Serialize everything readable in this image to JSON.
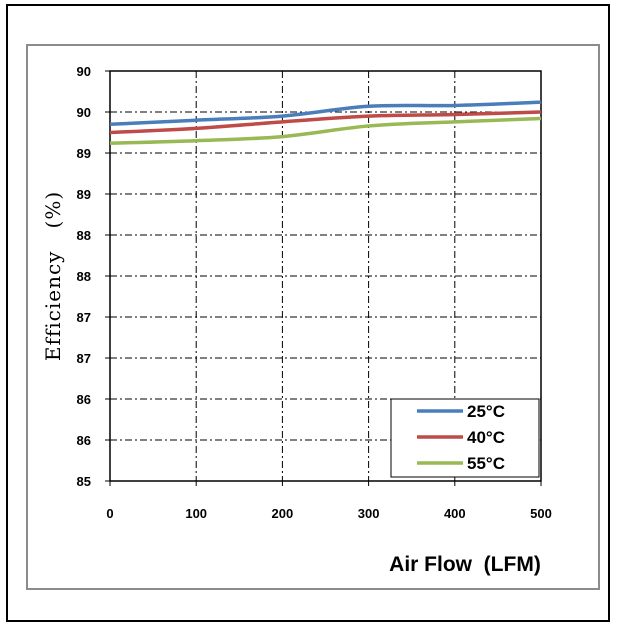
{
  "chart_data": {
    "type": "line",
    "xlabel": "Air Flow  (LFM)",
    "ylabel": "Efficiency   (%)",
    "x": [
      0,
      100,
      200,
      300,
      400,
      500
    ],
    "xticks": [
      "0",
      "100",
      "200",
      "300",
      "400",
      "500"
    ],
    "yticks": [
      "85",
      "86",
      "86",
      "87",
      "87",
      "88",
      "88",
      "89",
      "89",
      "90",
      "90"
    ],
    "ylim": [
      85,
      90
    ],
    "xlim": [
      0,
      500
    ],
    "grid": true,
    "legend_position": "bottom-right",
    "series": [
      {
        "name": "25°C",
        "color": "#4a7ebb",
        "values": [
          89.35,
          89.4,
          89.45,
          89.57,
          89.58,
          89.62
        ]
      },
      {
        "name": "40°C",
        "color": "#be4b48",
        "values": [
          89.25,
          89.3,
          89.38,
          89.45,
          89.47,
          89.5
        ]
      },
      {
        "name": "55°C",
        "color": "#98b954",
        "values": [
          89.12,
          89.15,
          89.2,
          89.33,
          89.38,
          89.42
        ]
      }
    ]
  }
}
